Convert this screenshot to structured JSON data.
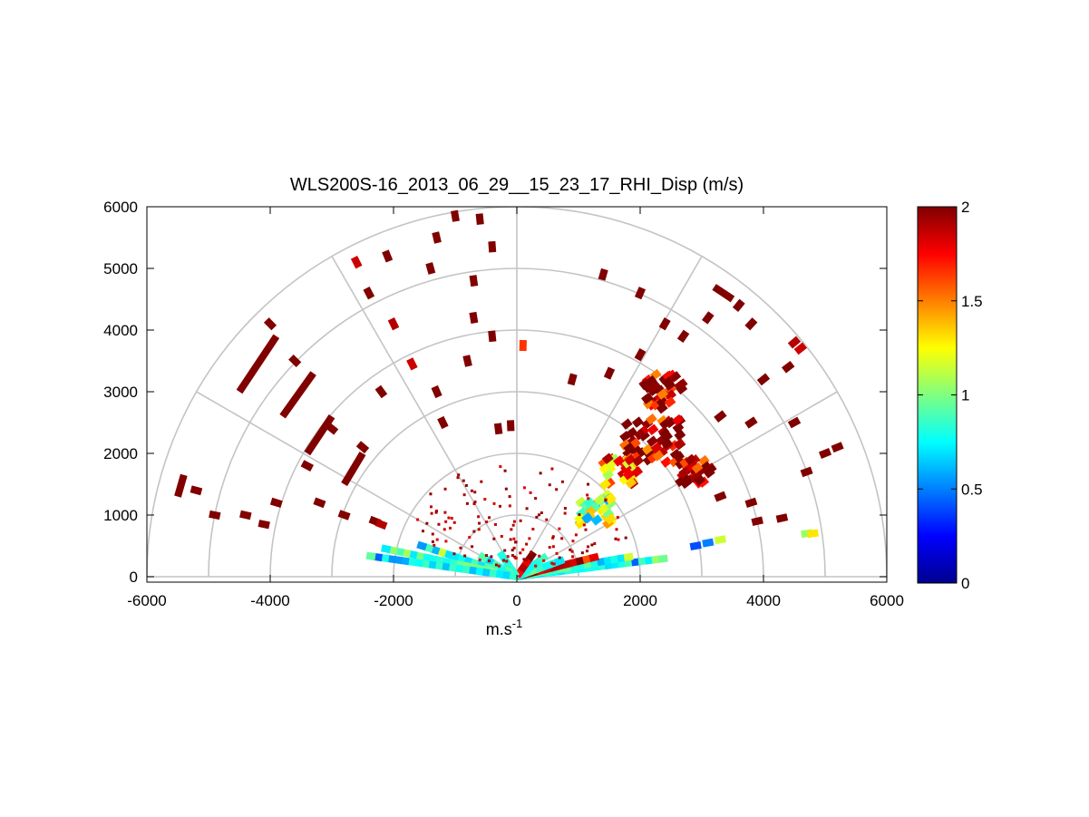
{
  "chart_data": {
    "type": "heatmap",
    "projection": "polar RHI (range-height indicator) sector, elevation 0-180 deg",
    "title": "WLS200S-16_2013_06_29__15_23_17_RHI_Disp (m/s)",
    "xlabel": "m.s",
    "xlabel_exponent": "-1",
    "ylabel": "",
    "xlim": [
      -6000,
      6000
    ],
    "ylim": [
      0,
      6000
    ],
    "x_ticks": [
      "-6000",
      "-4000",
      "-2000",
      "0",
      "2000",
      "4000",
      "6000"
    ],
    "y_ticks": [
      "0",
      "1000",
      "2000",
      "3000",
      "4000",
      "5000",
      "6000"
    ],
    "polar_grid": {
      "range_rings": [
        1000,
        2000,
        3000,
        4000,
        5000,
        6000
      ],
      "spokes_deg": [
        0,
        30,
        60,
        90,
        120,
        150,
        180
      ]
    },
    "colorbar": {
      "colormap": "jet",
      "clim": [
        0,
        2
      ],
      "ticks": [
        "0",
        "0.5",
        "1",
        "1.5",
        "2"
      ]
    },
    "colors": {
      "grid": "#c4c4c4",
      "low_value": "#00008f",
      "high_value": "#800000"
    },
    "near_field_beams": [
      {
        "elevation_deg": 7,
        "range_max": 2500,
        "value": 0.75
      },
      {
        "elevation_deg": 10,
        "range_max": 1900,
        "value": 0.85
      },
      {
        "elevation_deg": 14,
        "range_max": 1400,
        "value": 1.9
      },
      {
        "elevation_deg": 20,
        "range_max": 800,
        "value": 0.85
      },
      {
        "elevation_deg": 35,
        "range_max": 600,
        "value": 0.8
      },
      {
        "elevation_deg": 55,
        "range_max": 500,
        "value": 1.8
      },
      {
        "elevation_deg": 125,
        "range_max": 500,
        "value": 0.8
      },
      {
        "elevation_deg": 150,
        "range_max": 700,
        "value": 0.85
      },
      {
        "elevation_deg": 162,
        "range_max": 1700,
        "value": 0.8
      },
      {
        "elevation_deg": 168,
        "range_max": 2200,
        "value": 0.9
      },
      {
        "elevation_deg": 172,
        "range_max": 2500,
        "value": 0.75
      }
    ],
    "clusters": [
      {
        "x": 2200,
        "y": 2200,
        "value": 2.0,
        "extent": 900
      },
      {
        "x": 1700,
        "y": 1700,
        "value": 1.6,
        "extent": 600
      },
      {
        "x": 1300,
        "y": 1100,
        "value": 1.1,
        "extent": 600
      },
      {
        "x": 2400,
        "y": 3000,
        "value": 2.0,
        "extent": 700
      },
      {
        "x": 2900,
        "y": 1700,
        "value": 2.0,
        "extent": 500
      }
    ],
    "streaks": [
      {
        "x1": -4500,
        "y1": 3000,
        "x2": -3900,
        "y2": 3900,
        "value": 2.0
      },
      {
        "x1": -3800,
        "y1": 2600,
        "x2": -3300,
        "y2": 3300,
        "value": 2.0
      },
      {
        "x1": -3400,
        "y1": 2000,
        "x2": -3000,
        "y2": 2600,
        "value": 2.0
      },
      {
        "x1": -2800,
        "y1": 1500,
        "x2": -2500,
        "y2": 2000,
        "value": 2.0
      },
      {
        "x1": -5500,
        "y1": 1300,
        "x2": -5400,
        "y2": 1650,
        "value": 2.0
      },
      {
        "x1": 3200,
        "y1": 4700,
        "x2": 3500,
        "y2": 4500,
        "value": 2.0
      }
    ],
    "scattered_points": [
      {
        "x": -1000,
        "y": 5850,
        "value": 2.0
      },
      {
        "x": -600,
        "y": 5800,
        "value": 2.0
      },
      {
        "x": -400,
        "y": 5350,
        "value": 2.0
      },
      {
        "x": -1300,
        "y": 5500,
        "value": 2.0
      },
      {
        "x": -2600,
        "y": 5100,
        "value": 1.85
      },
      {
        "x": -2100,
        "y": 5200,
        "value": 2.0
      },
      {
        "x": -1400,
        "y": 5000,
        "value": 2.0
      },
      {
        "x": -700,
        "y": 4800,
        "value": 2.0
      },
      {
        "x": -2400,
        "y": 4600,
        "value": 2.0
      },
      {
        "x": -2000,
        "y": 4100,
        "value": 1.9
      },
      {
        "x": -700,
        "y": 4200,
        "value": 2.0
      },
      {
        "x": -400,
        "y": 3900,
        "value": 2.0
      },
      {
        "x": 100,
        "y": 3750,
        "value": 1.65
      },
      {
        "x": -1700,
        "y": 3450,
        "value": 1.85
      },
      {
        "x": -1300,
        "y": 3000,
        "value": 2.0
      },
      {
        "x": -1200,
        "y": 2500,
        "value": 2.0
      },
      {
        "x": -300,
        "y": 2400,
        "value": 2.0
      },
      {
        "x": -100,
        "y": 2450,
        "value": 2.0
      },
      {
        "x": 1400,
        "y": 4900,
        "value": 2.0
      },
      {
        "x": 2000,
        "y": 4600,
        "value": 2.0
      },
      {
        "x": 3600,
        "y": 4400,
        "value": 2.0
      },
      {
        "x": 3800,
        "y": 4100,
        "value": 2.0
      },
      {
        "x": 4500,
        "y": 3800,
        "value": 1.9
      },
      {
        "x": 4600,
        "y": 3700,
        "value": 1.85
      },
      {
        "x": 4000,
        "y": 3200,
        "value": 2.0
      },
      {
        "x": 4400,
        "y": 3400,
        "value": 2.0
      },
      {
        "x": 4500,
        "y": 2500,
        "value": 2.0
      },
      {
        "x": 3300,
        "y": 2600,
        "value": 2.0
      },
      {
        "x": 3800,
        "y": 2500,
        "value": 2.0
      },
      {
        "x": 5000,
        "y": 2000,
        "value": 2.0
      },
      {
        "x": 5200,
        "y": 2100,
        "value": 2.0
      },
      {
        "x": 4700,
        "y": 1700,
        "value": 2.0
      },
      {
        "x": 3300,
        "y": 1300,
        "value": 2.0
      },
      {
        "x": 3800,
        "y": 1200,
        "value": 2.0
      },
      {
        "x": 3900,
        "y": 900,
        "value": 2.0
      },
      {
        "x": 4300,
        "y": 950,
        "value": 2.0
      },
      {
        "x": 4700,
        "y": 700,
        "value": 1.05
      },
      {
        "x": 4800,
        "y": 700,
        "value": 1.3
      },
      {
        "x": 3300,
        "y": 600,
        "value": 1.15
      },
      {
        "x": 3100,
        "y": 550,
        "value": 0.5
      },
      {
        "x": 2900,
        "y": 500,
        "value": 0.4
      },
      {
        "x": -5200,
        "y": 1400,
        "value": 2.0
      },
      {
        "x": -4900,
        "y": 1000,
        "value": 2.0
      },
      {
        "x": -4400,
        "y": 1000,
        "value": 2.0
      },
      {
        "x": -4100,
        "y": 850,
        "value": 2.0
      },
      {
        "x": -3900,
        "y": 1200,
        "value": 2.0
      },
      {
        "x": -3200,
        "y": 1200,
        "value": 2.0
      },
      {
        "x": -2800,
        "y": 1000,
        "value": 2.0
      },
      {
        "x": -2300,
        "y": 900,
        "value": 2.0
      },
      {
        "x": -2200,
        "y": 850,
        "value": 1.9
      },
      {
        "x": -3400,
        "y": 1800,
        "value": 2.0
      },
      {
        "x": -3000,
        "y": 2400,
        "value": 2.0
      },
      {
        "x": -2500,
        "y": 2100,
        "value": 2.0
      },
      {
        "x": -3600,
        "y": 3500,
        "value": 2.0
      },
      {
        "x": -4000,
        "y": 4100,
        "value": 2.0
      },
      {
        "x": -2200,
        "y": 3000,
        "value": 2.0
      },
      {
        "x": -800,
        "y": 3500,
        "value": 2.0
      },
      {
        "x": 900,
        "y": 3200,
        "value": 2.0
      },
      {
        "x": 1500,
        "y": 3300,
        "value": 2.0
      },
      {
        "x": 2000,
        "y": 3600,
        "value": 2.0
      },
      {
        "x": 2700,
        "y": 3900,
        "value": 2.0
      },
      {
        "x": 3100,
        "y": 4200,
        "value": 2.0
      },
      {
        "x": 2400,
        "y": 4100,
        "value": 2.0
      }
    ]
  }
}
